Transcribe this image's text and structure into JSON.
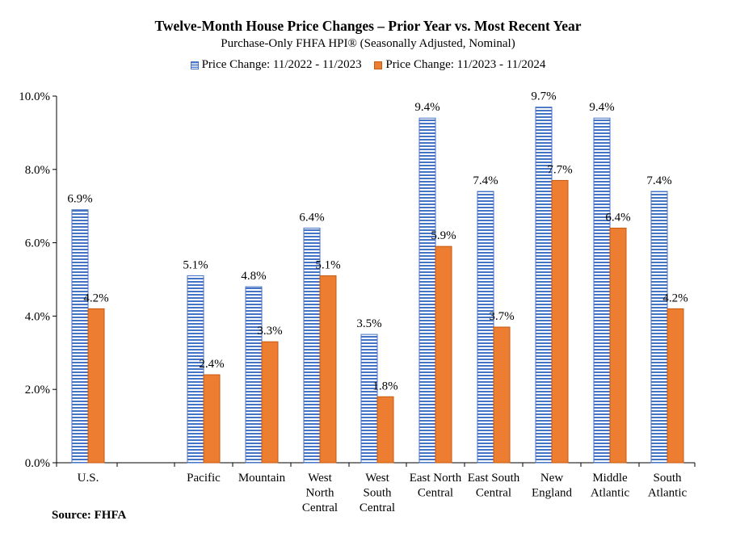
{
  "chart_data": {
    "type": "bar",
    "title": "Twelve-Month House Price Changes – Prior Year vs. Most Recent Year",
    "subtitle": "Purchase-Only FHFA HPI® (Seasonally Adjusted, Nominal)",
    "categories": [
      [
        "U.S."
      ],
      [
        "Pacific"
      ],
      [
        "Mountain"
      ],
      [
        "West",
        "North",
        "Central"
      ],
      [
        "West",
        "South",
        "Central"
      ],
      [
        "East North",
        "Central"
      ],
      [
        "East South",
        "Central"
      ],
      [
        "New",
        "England"
      ],
      [
        "Middle",
        "Atlantic"
      ],
      [
        "South",
        "Atlantic"
      ]
    ],
    "series": [
      {
        "name": "Price Change:  11/2022 - 11/2023",
        "color": "#4472c4",
        "pattern": "horizontal-stripes",
        "values": [
          6.9,
          5.1,
          4.8,
          6.4,
          3.5,
          9.4,
          7.4,
          9.7,
          9.4,
          7.4
        ],
        "labels": [
          "6.9%",
          "5.1%",
          "4.8%",
          "6.4%",
          "3.5%",
          "9.4%",
          "7.4%",
          "9.7%",
          "9.4%",
          "7.4%"
        ]
      },
      {
        "name": "Price Change:  11/2023 - 11/2024",
        "color": "#ed7d31",
        "pattern": "solid",
        "values": [
          4.2,
          2.4,
          3.3,
          5.1,
          1.8,
          5.9,
          3.7,
          7.7,
          6.4,
          4.2
        ],
        "labels": [
          "4.2%",
          "2.4%",
          "3.3%",
          "5.1%",
          "1.8%",
          "5.9%",
          "3.7%",
          "7.7%",
          "6.4%",
          "4.2%"
        ]
      }
    ],
    "ylim": [
      0,
      10
    ],
    "yticks": [
      "0.0%",
      "2.0%",
      "4.0%",
      "6.0%",
      "8.0%",
      "10.0%"
    ],
    "ytick_values": [
      0,
      2,
      4,
      6,
      8,
      10
    ],
    "legend_position": "top-center",
    "grid": false
  },
  "source": "Source: FHFA"
}
